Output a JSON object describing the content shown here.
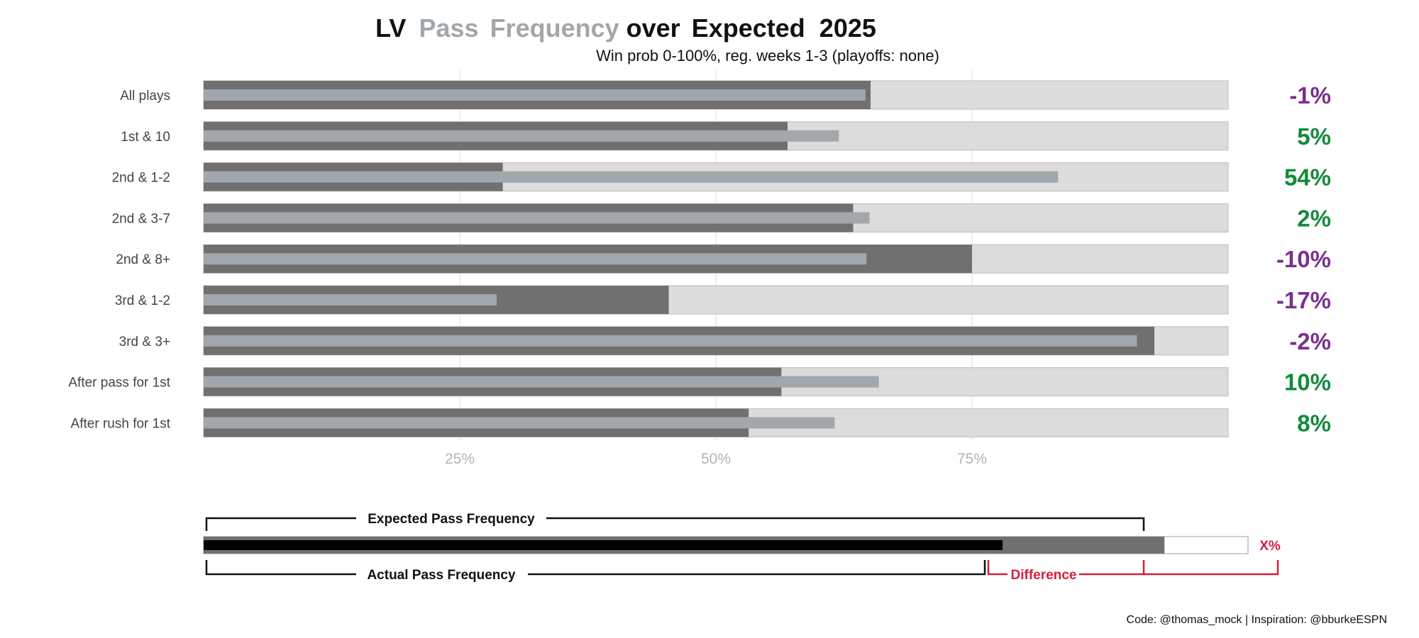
{
  "header": {
    "title_team": "LV",
    "title_pass": "Pass",
    "title_freq": "Frequency",
    "title_over": "over",
    "title_expected": "Expected",
    "title_year": "2025",
    "subtitle": "Win prob 0-100%, reg. weeks 1-3 (playoffs: none)"
  },
  "chart_data": {
    "type": "bar",
    "categories": [
      "All plays",
      "1st & 10",
      "2nd & 1-2",
      "2nd & 3-7",
      "2nd & 8+",
      "3rd & 1-2",
      "3rd & 3+",
      "After pass for 1st",
      "After rush for 1st"
    ],
    "series": [
      {
        "name": "Expected Pass Frequency",
        "values": [
          65.1,
          57.0,
          29.2,
          63.4,
          75.0,
          45.4,
          92.8,
          56.4,
          53.2
        ]
      },
      {
        "name": "Actual Pass Frequency",
        "values": [
          64.6,
          62.0,
          83.4,
          65.0,
          64.7,
          28.6,
          91.1,
          65.9,
          61.6
        ]
      }
    ],
    "difference_labels": [
      "-1%",
      "5%",
      "54%",
      "2%",
      "-10%",
      "-17%",
      "-2%",
      "10%",
      "8%"
    ],
    "xticks": [
      "25%",
      "50%",
      "75%"
    ],
    "xlim": [
      0,
      100
    ],
    "grid": true
  },
  "legend": {
    "expected_label": "Expected Pass Frequency",
    "actual_label": "Actual Pass Frequency",
    "difference_label": "Difference",
    "x_label": "X%",
    "expected_value": 92,
    "actual_value": 76.5
  },
  "colors": {
    "expected_bar": "#707070",
    "actual_bar": "#a1a7aa",
    "background_bar": "#dcdcdc",
    "positive": "#128a3a",
    "negative": "#7b2f8e",
    "accent_red": "#d21f3c",
    "title_gray": "#a2a7ab"
  },
  "caption": "Code: @thomas_mock | Inspiration: @bburkeESPN"
}
